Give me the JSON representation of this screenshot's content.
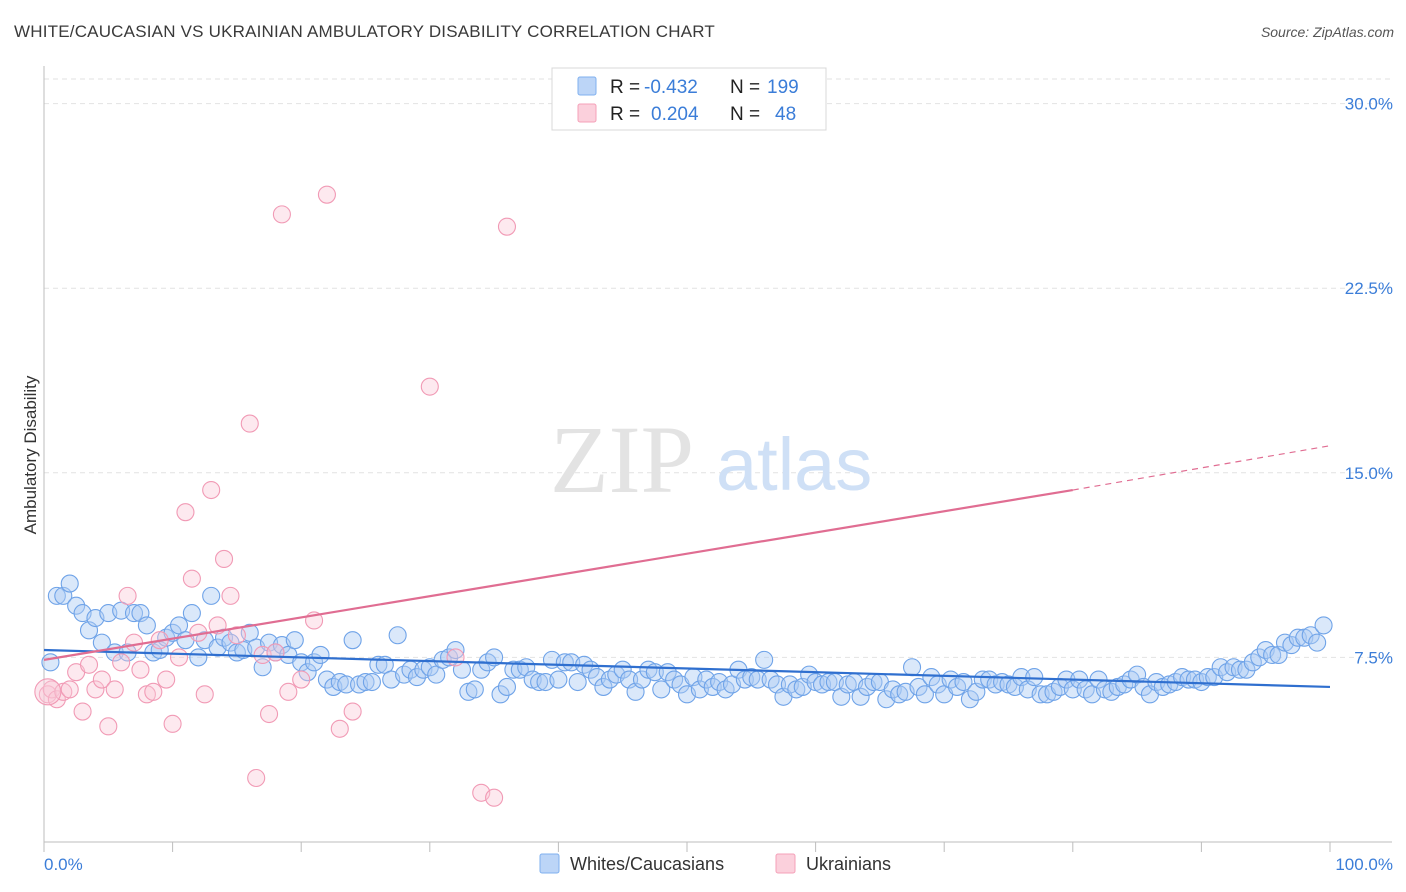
{
  "header": {
    "title": "WHITE/CAUCASIAN VS UKRAINIAN AMBULATORY DISABILITY CORRELATION CHART",
    "source": "Source: ZipAtlas.com"
  },
  "watermark": {
    "zip": "ZIP",
    "atlas": "atlas"
  },
  "legend": [
    {
      "r_label": "R =",
      "r_value": "-0.432",
      "n_label": "N =",
      "n_value": "199",
      "color": "#7fb0ef"
    },
    {
      "r_label": "R =",
      "r_value": "0.204",
      "n_label": "N =",
      "n_value": "48",
      "color": "#f4a0b8"
    }
  ],
  "bottom_legend": [
    {
      "label": "Whites/Caucasians",
      "color": "#7fb0ef"
    },
    {
      "label": "Ukrainians",
      "color": "#f4a0b8"
    }
  ],
  "chart_data": {
    "type": "scatter",
    "title": "WHITE/CAUCASIAN VS UKRAINIAN AMBULATORY DISABILITY CORRELATION CHART",
    "xlabel": "",
    "ylabel": "Ambulatory Disability",
    "xlim": [
      0,
      100
    ],
    "ylim": [
      0,
      31
    ],
    "x_tick_labels": [
      "0.0%",
      "100.0%"
    ],
    "y_ticks": [
      7.5,
      15.0,
      22.5,
      30.0
    ],
    "y_tick_labels": [
      "7.5%",
      "15.0%",
      "22.5%",
      "30.0%"
    ],
    "grid": true,
    "legend_position": "top-center",
    "series": [
      {
        "name": "Whites/Caucasians",
        "color": "#7fb0ef",
        "trend": {
          "x": [
            0,
            100
          ],
          "y": [
            7.8,
            6.3
          ],
          "color": "#2f6fcf"
        },
        "points": [
          [
            0.5,
            7.3
          ],
          [
            1,
            10
          ],
          [
            1.5,
            10
          ],
          [
            2,
            10.5
          ],
          [
            2.5,
            9.6
          ],
          [
            3,
            9.3
          ],
          [
            3.5,
            8.6
          ],
          [
            4,
            9.1
          ],
          [
            4.5,
            8.1
          ],
          [
            5,
            9.3
          ],
          [
            5.5,
            7.7
          ],
          [
            6,
            9.4
          ],
          [
            6.5,
            7.7
          ],
          [
            7,
            9.3
          ],
          [
            7.5,
            9.3
          ],
          [
            8,
            8.8
          ],
          [
            8.5,
            7.7
          ],
          [
            9,
            7.8
          ],
          [
            9.5,
            8.3
          ],
          [
            10,
            8.5
          ],
          [
            10.5,
            8.8
          ],
          [
            11,
            8.2
          ],
          [
            11.5,
            9.3
          ],
          [
            12,
            7.5
          ],
          [
            12.5,
            8.2
          ],
          [
            13,
            10
          ],
          [
            13.5,
            7.9
          ],
          [
            14,
            8.3
          ],
          [
            14.5,
            8.1
          ],
          [
            15,
            7.7
          ],
          [
            15.5,
            7.8
          ],
          [
            16,
            8.5
          ],
          [
            16.5,
            7.9
          ],
          [
            17,
            7.1
          ],
          [
            17.5,
            8.1
          ],
          [
            18,
            7.7
          ],
          [
            18.5,
            8
          ],
          [
            19,
            7.6
          ],
          [
            19.5,
            8.2
          ],
          [
            20,
            7.3
          ],
          [
            20.5,
            6.9
          ],
          [
            21,
            7.3
          ],
          [
            21.5,
            7.6
          ],
          [
            22,
            6.6
          ],
          [
            22.5,
            6.3
          ],
          [
            23,
            6.5
          ],
          [
            23.5,
            6.4
          ],
          [
            24,
            8.2
          ],
          [
            24.5,
            6.4
          ],
          [
            25,
            6.5
          ],
          [
            25.5,
            6.5
          ],
          [
            26,
            7.2
          ],
          [
            26.5,
            7.2
          ],
          [
            27,
            6.6
          ],
          [
            27.5,
            8.4
          ],
          [
            28,
            6.8
          ],
          [
            28.5,
            7
          ],
          [
            29,
            6.7
          ],
          [
            29.5,
            7
          ],
          [
            30,
            7.1
          ],
          [
            30.5,
            6.8
          ],
          [
            31,
            7.4
          ],
          [
            31.5,
            7.5
          ],
          [
            32,
            7.8
          ],
          [
            32.5,
            7
          ],
          [
            33,
            6.1
          ],
          [
            33.5,
            6.2
          ],
          [
            34,
            7
          ],
          [
            34.5,
            7.3
          ],
          [
            35,
            7.5
          ],
          [
            35.5,
            6
          ],
          [
            36,
            6.3
          ],
          [
            36.5,
            7
          ],
          [
            37,
            7
          ],
          [
            37.5,
            7.1
          ],
          [
            38,
            6.6
          ],
          [
            38.5,
            6.5
          ],
          [
            39,
            6.5
          ],
          [
            39.5,
            7.4
          ],
          [
            40,
            6.6
          ],
          [
            40.5,
            7.3
          ],
          [
            41,
            7.3
          ],
          [
            41.5,
            6.5
          ],
          [
            42,
            7.2
          ],
          [
            42.5,
            7
          ],
          [
            43,
            6.7
          ],
          [
            43.5,
            6.3
          ],
          [
            44,
            6.6
          ],
          [
            44.5,
            6.8
          ],
          [
            45,
            7
          ],
          [
            45.5,
            6.6
          ],
          [
            46,
            6.1
          ],
          [
            46.5,
            6.6
          ],
          [
            47,
            7
          ],
          [
            47.5,
            6.9
          ],
          [
            48,
            6.2
          ],
          [
            48.5,
            6.9
          ],
          [
            49,
            6.6
          ],
          [
            49.5,
            6.4
          ],
          [
            50,
            6
          ],
          [
            50.5,
            6.7
          ],
          [
            51,
            6.2
          ],
          [
            51.5,
            6.6
          ],
          [
            52,
            6.3
          ],
          [
            52.5,
            6.5
          ],
          [
            53,
            6.2
          ],
          [
            53.5,
            6.4
          ],
          [
            54,
            7
          ],
          [
            54.5,
            6.6
          ],
          [
            55,
            6.7
          ],
          [
            55.5,
            6.6
          ],
          [
            56,
            7.4
          ],
          [
            56.5,
            6.6
          ],
          [
            57,
            6.4
          ],
          [
            57.5,
            5.9
          ],
          [
            58,
            6.4
          ],
          [
            58.5,
            6.2
          ],
          [
            59,
            6.3
          ],
          [
            59.5,
            6.8
          ],
          [
            60,
            6.5
          ],
          [
            60.5,
            6.4
          ],
          [
            61,
            6.5
          ],
          [
            61.5,
            6.5
          ],
          [
            62,
            5.9
          ],
          [
            62.5,
            6.4
          ],
          [
            63,
            6.5
          ],
          [
            63.5,
            5.9
          ],
          [
            64,
            6.3
          ],
          [
            64.5,
            6.5
          ],
          [
            65,
            6.5
          ],
          [
            65.5,
            5.8
          ],
          [
            66,
            6.2
          ],
          [
            66.5,
            6
          ],
          [
            67,
            6.1
          ],
          [
            67.5,
            7.1
          ],
          [
            68,
            6.3
          ],
          [
            68.5,
            6
          ],
          [
            69,
            6.7
          ],
          [
            69.5,
            6.4
          ],
          [
            70,
            6
          ],
          [
            70.5,
            6.6
          ],
          [
            71,
            6.3
          ],
          [
            71.5,
            6.5
          ],
          [
            72,
            5.8
          ],
          [
            72.5,
            6.1
          ],
          [
            73,
            6.6
          ],
          [
            73.5,
            6.6
          ],
          [
            74,
            6.4
          ],
          [
            74.5,
            6.5
          ],
          [
            75,
            6.4
          ],
          [
            75.5,
            6.3
          ],
          [
            76,
            6.7
          ],
          [
            76.5,
            6.2
          ],
          [
            77,
            6.7
          ],
          [
            77.5,
            6
          ],
          [
            78,
            6
          ],
          [
            78.5,
            6.1
          ],
          [
            79,
            6.3
          ],
          [
            79.5,
            6.6
          ],
          [
            80,
            6.2
          ],
          [
            80.5,
            6.6
          ],
          [
            81,
            6.2
          ],
          [
            81.5,
            6
          ],
          [
            82,
            6.6
          ],
          [
            82.5,
            6.2
          ],
          [
            83,
            6.1
          ],
          [
            83.5,
            6.3
          ],
          [
            84,
            6.4
          ],
          [
            84.5,
            6.6
          ],
          [
            85,
            6.8
          ],
          [
            85.5,
            6.3
          ],
          [
            86,
            6
          ],
          [
            86.5,
            6.5
          ],
          [
            87,
            6.3
          ],
          [
            87.5,
            6.4
          ],
          [
            88,
            6.5
          ],
          [
            88.5,
            6.7
          ],
          [
            89,
            6.6
          ],
          [
            89.5,
            6.6
          ],
          [
            90,
            6.5
          ],
          [
            90.5,
            6.7
          ],
          [
            91,
            6.7
          ],
          [
            91.5,
            7.1
          ],
          [
            92,
            6.9
          ],
          [
            92.5,
            7.1
          ],
          [
            93,
            7
          ],
          [
            93.5,
            7
          ],
          [
            94,
            7.3
          ],
          [
            94.5,
            7.5
          ],
          [
            95,
            7.8
          ],
          [
            95.5,
            7.6
          ],
          [
            96,
            7.6
          ],
          [
            96.5,
            8.1
          ],
          [
            97,
            8
          ],
          [
            97.5,
            8.3
          ],
          [
            98,
            8.3
          ],
          [
            98.5,
            8.4
          ],
          [
            99,
            8.1
          ],
          [
            99.5,
            8.8
          ]
        ]
      },
      {
        "name": "Ukrainians",
        "color": "#f4a0b8",
        "trend": {
          "x": [
            0,
            80,
            100
          ],
          "y": [
            7.4,
            14.3,
            16.1
          ],
          "color": "#e06d92",
          "dashed_from_x": 80
        },
        "points": [
          [
            0.3,
            6
          ],
          [
            0.6,
            6.2
          ],
          [
            1,
            5.8
          ],
          [
            1.5,
            6.1
          ],
          [
            2,
            6.2
          ],
          [
            2.5,
            6.9
          ],
          [
            3,
            5.3
          ],
          [
            3.5,
            7.2
          ],
          [
            4,
            6.2
          ],
          [
            4.5,
            6.6
          ],
          [
            5,
            4.7
          ],
          [
            5.5,
            6.2
          ],
          [
            6,
            7.3
          ],
          [
            6.5,
            10
          ],
          [
            7,
            8.1
          ],
          [
            7.5,
            7
          ],
          [
            8,
            6
          ],
          [
            8.5,
            6.1
          ],
          [
            9,
            8.2
          ],
          [
            9.5,
            6.6
          ],
          [
            10,
            4.8
          ],
          [
            10.5,
            7.5
          ],
          [
            11,
            13.4
          ],
          [
            11.5,
            10.7
          ],
          [
            12,
            8.5
          ],
          [
            12.5,
            6
          ],
          [
            13,
            14.3
          ],
          [
            13.5,
            8.8
          ],
          [
            14,
            11.5
          ],
          [
            14.5,
            10
          ],
          [
            15,
            8.4
          ],
          [
            16,
            17
          ],
          [
            16.5,
            2.6
          ],
          [
            17,
            7.6
          ],
          [
            17.5,
            5.2
          ],
          [
            18,
            7.7
          ],
          [
            18.5,
            25.5
          ],
          [
            19,
            6.1
          ],
          [
            20,
            6.6
          ],
          [
            21,
            9
          ],
          [
            22,
            26.3
          ],
          [
            23,
            4.6
          ],
          [
            24,
            5.3
          ],
          [
            30,
            18.5
          ],
          [
            32,
            7.5
          ],
          [
            34,
            2
          ],
          [
            35,
            1.8
          ],
          [
            36,
            25
          ]
        ]
      }
    ]
  }
}
